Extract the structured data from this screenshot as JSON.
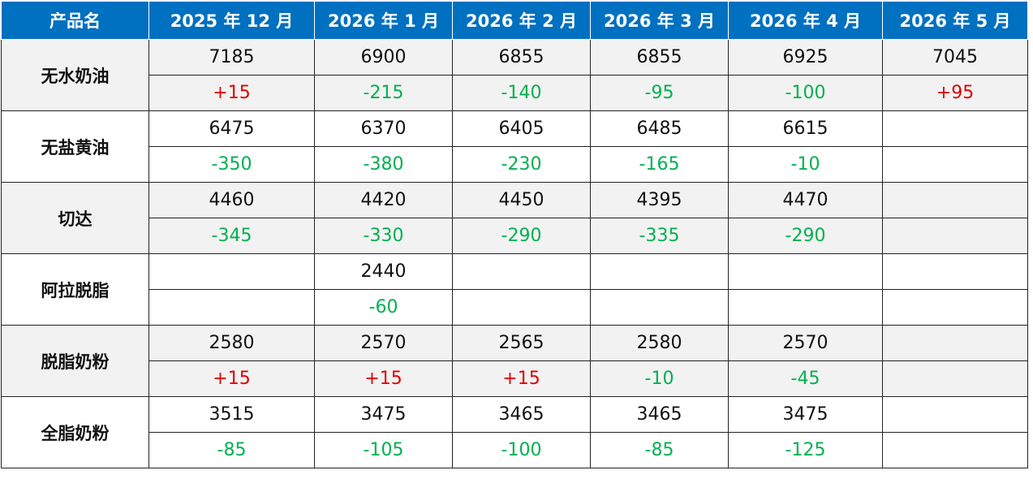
{
  "table": {
    "header": [
      "产品名",
      "2025 年 12 月",
      "2026 年 1 月",
      "2026 年 2 月",
      "2026 年 3 月",
      "2026 年 4 月",
      "2026 年 5 月"
    ],
    "rows": [
      {
        "name": "无水奶油",
        "prices": [
          7185,
          6900,
          6855,
          6855,
          6925,
          7045
        ],
        "changes": [
          "+15",
          "-215",
          "-140",
          "-95",
          "-100",
          "+95"
        ]
      },
      {
        "name": "无盐黄油",
        "prices": [
          6475,
          6370,
          6405,
          6485,
          6615,
          null
        ],
        "changes": [
          "-350",
          "-380",
          "-230",
          "-165",
          "-10",
          null
        ]
      },
      {
        "name": "切达",
        "prices": [
          4460,
          4420,
          4450,
          4395,
          4470,
          null
        ],
        "changes": [
          "-345",
          "-330",
          "-290",
          "-335",
          "-290",
          null
        ]
      },
      {
        "name": "阿拉脱脂",
        "prices": [
          null,
          2440,
          null,
          null,
          null,
          null
        ],
        "changes": [
          null,
          "-60",
          null,
          null,
          null,
          null
        ]
      },
      {
        "name": "脱脂奶粉",
        "prices": [
          2580,
          2570,
          2565,
          2580,
          2570,
          null
        ],
        "changes": [
          "+15",
          "+15",
          "+15",
          "-10",
          "-45",
          null
        ]
      },
      {
        "name": "全脂奶粉",
        "prices": [
          3515,
          3475,
          3465,
          3465,
          3475,
          null
        ],
        "changes": [
          "-85",
          "-105",
          "-100",
          "-85",
          "-125",
          null
        ]
      }
    ]
  }
}
